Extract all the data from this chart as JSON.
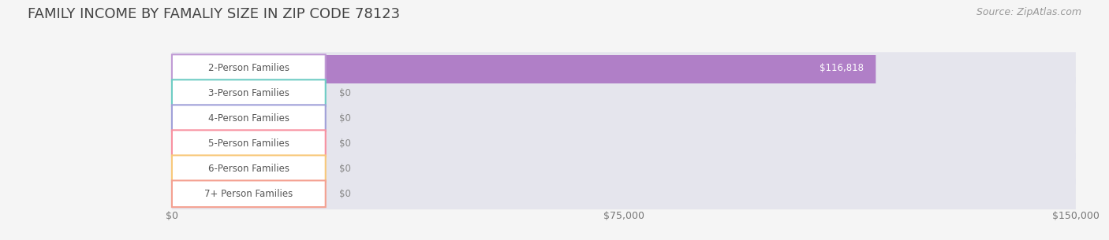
{
  "title": "FAMILY INCOME BY FAMALIY SIZE IN ZIP CODE 78123",
  "source": "Source: ZipAtlas.com",
  "categories": [
    "2-Person Families",
    "3-Person Families",
    "4-Person Families",
    "5-Person Families",
    "6-Person Families",
    "7+ Person Families"
  ],
  "values": [
    116818,
    0,
    0,
    0,
    0,
    0
  ],
  "bar_colors": [
    "#b07fc7",
    "#6eccc4",
    "#a0a0d8",
    "#f891a0",
    "#f8c87a",
    "#f4a090"
  ],
  "label_border_colors": [
    "#c09ad5",
    "#6eccc4",
    "#a0a0d8",
    "#f891a0",
    "#f8c87a",
    "#f4a090"
  ],
  "value_labels": [
    "$116,818",
    "$0",
    "$0",
    "$0",
    "$0",
    "$0"
  ],
  "xlim": [
    0,
    150000
  ],
  "xticks": [
    0,
    75000,
    150000
  ],
  "xtick_labels": [
    "$0",
    "$75,000",
    "$150,000"
  ],
  "background_color": "#f5f5f5",
  "bar_bg_color": "#e5e5ed",
  "title_fontsize": 13,
  "source_fontsize": 9,
  "label_fontsize": 8.5,
  "value_fontsize": 8.5,
  "bar_height": 0.62
}
